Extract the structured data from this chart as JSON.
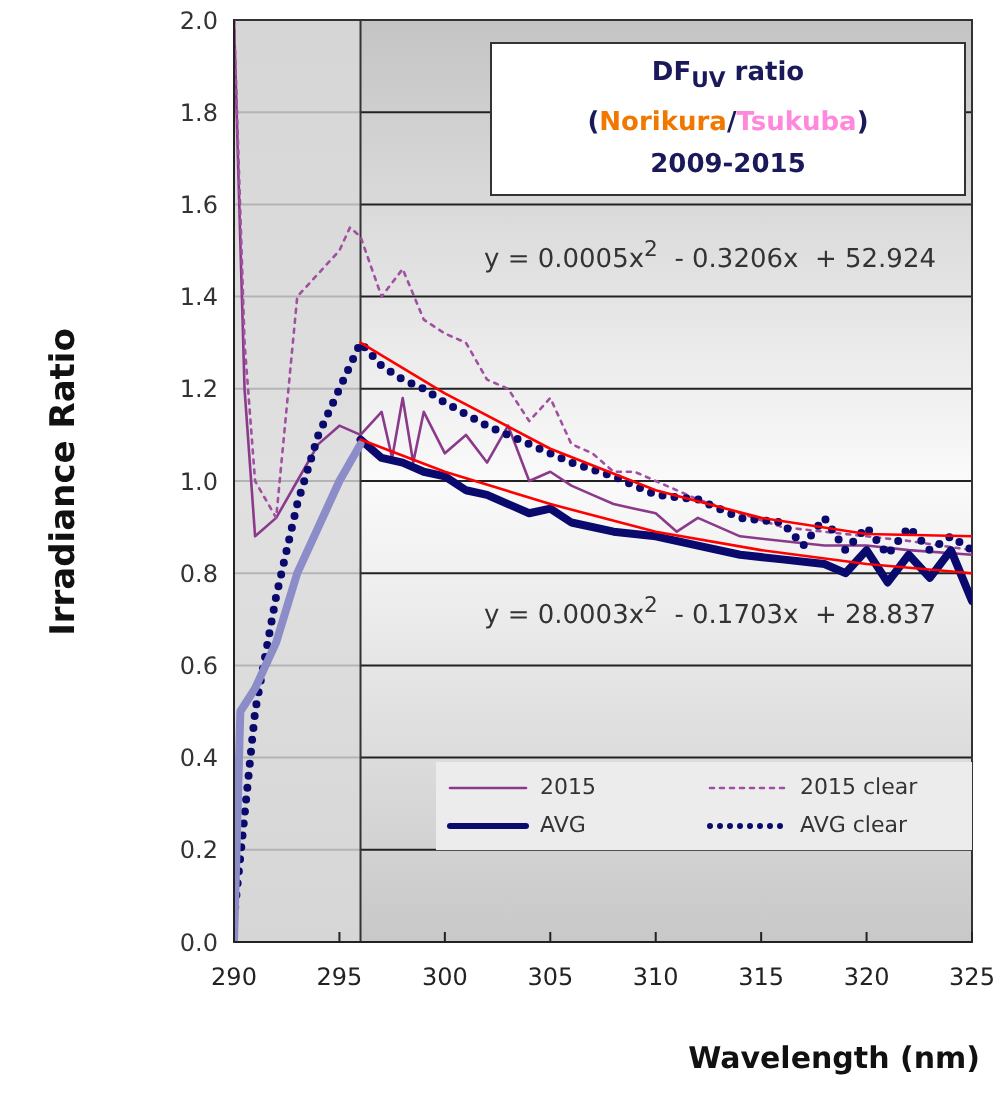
{
  "chart_data": {
    "type": "line",
    "title": "DF$_{UV}$ ratio",
    "subtitle": "(Norikura/Tsukuba)",
    "xlabel": "Wavelength (nm)",
    "ylabel": "Irradiance Ratio",
    "annotations": [
      "2009-2015",
      "y = 0.0005x$^{2}$  - 0.3206x  + 52.924",
      "y = 0.0003x$^{2}$  - 0.1703x  + 28.837"
    ],
    "xlim": [
      290,
      325
    ],
    "xticks": [
      290,
      295,
      300,
      305,
      310,
      315,
      320,
      325
    ],
    "ylim": [
      0,
      2
    ],
    "yticks": [
      {
        "value": 0,
        "label": "0.0"
      },
      0.2,
      0.4,
      0.6,
      0.8,
      {
        "value": 1,
        "label": "1.0"
      },
      1.2,
      1.4,
      1.6,
      1.8,
      {
        "value": 2,
        "label": "2.0"
      }
    ],
    "grid": "y",
    "legend": "bottom right",
    "marker": "none",
    "bands": [
      {
        "axis": "x",
        "from": 290,
        "to": 296,
        "color": "#d9d9d9"
      }
    ],
    "series": [
      {
        "name": "2015",
        "color": "#8b3a8b",
        "line_style": "solid",
        "x": [
          290,
          290.5,
          291,
          292,
          293,
          294,
          295,
          296,
          297,
          297.5,
          298,
          298.5,
          299,
          300,
          301,
          302,
          303,
          304,
          305,
          306,
          307,
          308,
          309,
          310,
          311,
          312,
          314,
          316,
          318,
          320,
          322,
          325
        ],
        "values": [
          2.0,
          1.2,
          0.88,
          0.92,
          1.0,
          1.08,
          1.12,
          1.1,
          1.15,
          1.05,
          1.18,
          1.04,
          1.15,
          1.06,
          1.1,
          1.04,
          1.12,
          1.0,
          1.02,
          0.99,
          0.97,
          0.95,
          0.94,
          0.93,
          0.89,
          0.92,
          0.88,
          0.87,
          0.86,
          0.86,
          0.85,
          0.84
        ]
      },
      {
        "name": "2015 clear",
        "color": "#a050a0",
        "line_style": "dotted",
        "x": [
          290,
          290.5,
          291,
          292,
          293,
          294,
          295,
          295.5,
          296,
          297,
          298,
          299,
          300,
          301,
          302,
          303,
          304,
          305,
          306,
          307,
          308,
          309,
          310,
          312,
          314,
          316,
          318,
          320,
          322,
          325
        ],
        "values": [
          2.0,
          1.3,
          1.0,
          0.92,
          1.4,
          1.45,
          1.5,
          1.55,
          1.53,
          1.4,
          1.46,
          1.35,
          1.32,
          1.3,
          1.22,
          1.2,
          1.13,
          1.18,
          1.08,
          1.06,
          1.02,
          1.02,
          1.0,
          0.96,
          0.93,
          0.9,
          0.89,
          0.88,
          0.87,
          0.85
        ]
      },
      {
        "name": "AVG",
        "color": "#0a0a6e",
        "line_style": "solid",
        "x": [
          296,
          297,
          298,
          299,
          300,
          301,
          302,
          303,
          304,
          305,
          306,
          308,
          310,
          312,
          314,
          316,
          318,
          319,
          320,
          321,
          322,
          323,
          324,
          325
        ],
        "values": [
          1.09,
          1.05,
          1.04,
          1.02,
          1.01,
          0.98,
          0.97,
          0.95,
          0.93,
          0.94,
          0.91,
          0.89,
          0.88,
          0.86,
          0.84,
          0.83,
          0.82,
          0.8,
          0.85,
          0.78,
          0.84,
          0.79,
          0.85,
          0.74
        ]
      },
      {
        "name": "AVG clear",
        "color": "#0a0a6e",
        "line_style": "dotted",
        "x": [
          290,
          291,
          292,
          293,
          294,
          295,
          296,
          297,
          298,
          299,
          300,
          302,
          304,
          306,
          308,
          310,
          312,
          314,
          316,
          317,
          318,
          319,
          320,
          321,
          322,
          323,
          324,
          325
        ],
        "values": [
          0.05,
          0.5,
          0.75,
          0.95,
          1.1,
          1.2,
          1.3,
          1.25,
          1.22,
          1.2,
          1.17,
          1.12,
          1.08,
          1.04,
          1.01,
          0.97,
          0.96,
          0.92,
          0.91,
          0.86,
          0.92,
          0.85,
          0.9,
          0.84,
          0.9,
          0.85,
          0.88,
          0.85
        ]
      },
      {
        "color": "#8c8cc8",
        "line_style": "solid",
        "x": [
          290,
          290.3,
          291,
          292,
          293,
          294,
          295,
          296
        ],
        "values": [
          0.0,
          0.5,
          0.55,
          0.65,
          0.8,
          0.9,
          1.0,
          1.08
        ]
      },
      {
        "type": "line",
        "color": "#ff0000",
        "line_style": "solid",
        "x": [
          296,
          300,
          305,
          310,
          315,
          320,
          325
        ],
        "values": [
          1.3,
          1.19,
          1.07,
          0.98,
          0.92,
          0.885,
          0.88
        ]
      },
      {
        "type": "line",
        "color": "#ff0000",
        "line_style": "solid",
        "x": [
          296,
          300,
          305,
          310,
          315,
          320,
          325
        ],
        "values": [
          1.09,
          1.02,
          0.95,
          0.89,
          0.85,
          0.82,
          0.8
        ]
      }
    ]
  }
}
